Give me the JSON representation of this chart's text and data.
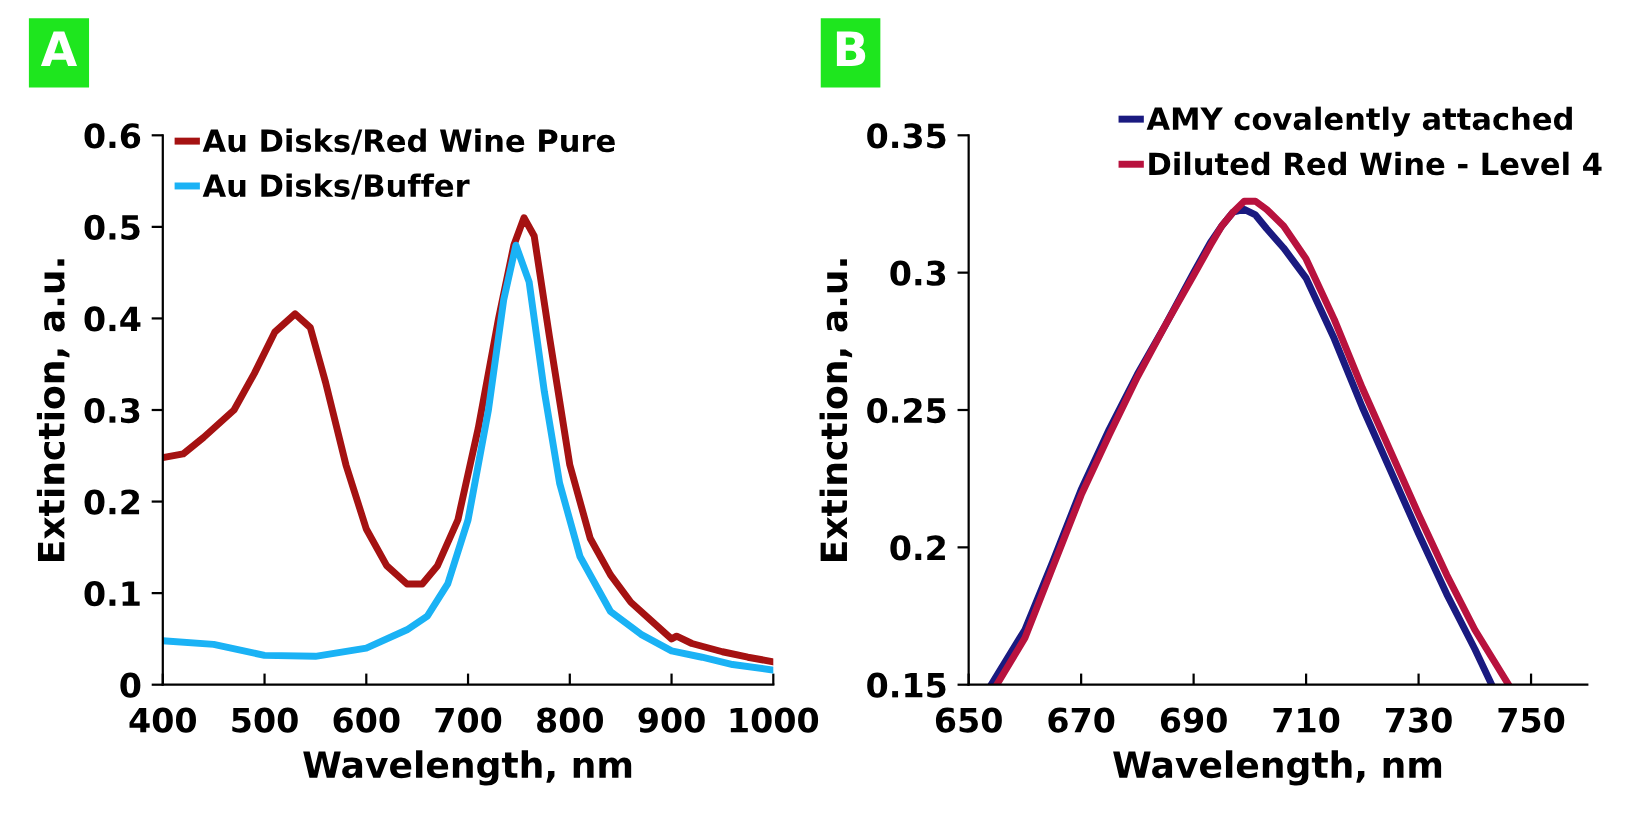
{
  "chart_data": [
    {
      "type": "line",
      "title": "A",
      "xlabel": "Wavelength, nm",
      "ylabel": "Extinction, a.u.",
      "xlim": [
        400,
        1000
      ],
      "ylim": [
        0,
        0.6
      ],
      "xticks": [
        400,
        500,
        600,
        700,
        800,
        900,
        1000
      ],
      "yticks": [
        0,
        0.1,
        0.2,
        0.3,
        0.4,
        0.5,
        0.6
      ],
      "legend": "top left",
      "grid": false,
      "series": [
        {
          "name": "Au Disks/Red Wine Pure",
          "color": "#a51212",
          "x": [
            400,
            420,
            440,
            470,
            490,
            510,
            530,
            545,
            560,
            580,
            600,
            620,
            640,
            655,
            670,
            690,
            710,
            730,
            745,
            755,
            765,
            780,
            800,
            820,
            840,
            860,
            880,
            895,
            900,
            905,
            920,
            950,
            975,
            1000
          ],
          "values": [
            0.248,
            0.252,
            0.27,
            0.3,
            0.34,
            0.385,
            0.405,
            0.39,
            0.33,
            0.24,
            0.17,
            0.13,
            0.11,
            0.11,
            0.13,
            0.18,
            0.28,
            0.4,
            0.48,
            0.51,
            0.49,
            0.38,
            0.24,
            0.16,
            0.12,
            0.09,
            0.07,
            0.055,
            0.05,
            0.053,
            0.045,
            0.036,
            0.03,
            0.025
          ]
        },
        {
          "name": "Au Disks/Buffer",
          "color": "#1ab2f5",
          "x": [
            400,
            450,
            500,
            550,
            600,
            640,
            660,
            680,
            700,
            720,
            735,
            747,
            760,
            775,
            790,
            810,
            840,
            870,
            900,
            930,
            960,
            1000
          ],
          "values": [
            0.048,
            0.044,
            0.032,
            0.031,
            0.04,
            0.06,
            0.075,
            0.11,
            0.18,
            0.3,
            0.42,
            0.48,
            0.44,
            0.32,
            0.22,
            0.14,
            0.08,
            0.055,
            0.037,
            0.03,
            0.022,
            0.016
          ]
        }
      ]
    },
    {
      "type": "line",
      "title": "B",
      "xlabel": "Wavelength, nm",
      "ylabel": "Extinction, a.u.",
      "xlim": [
        650,
        760
      ],
      "ylim": [
        0.15,
        0.35
      ],
      "xticks": [
        650,
        670,
        690,
        710,
        730,
        750
      ],
      "yticks": [
        0.15,
        0.2,
        0.25,
        0.3,
        0.35
      ],
      "legend": "top right",
      "grid": false,
      "series": [
        {
          "name": "AMY covalently attached",
          "color": "#1a1a80",
          "x": [
            654,
            660,
            665,
            670,
            675,
            680,
            685,
            690,
            693,
            695,
            697,
            699,
            701,
            703,
            706,
            710,
            715,
            720,
            725,
            730,
            735,
            740,
            743
          ],
          "values": [
            0.15,
            0.17,
            0.195,
            0.221,
            0.243,
            0.263,
            0.281,
            0.3,
            0.311,
            0.317,
            0.322,
            0.323,
            0.321,
            0.316,
            0.309,
            0.298,
            0.276,
            0.251,
            0.228,
            0.205,
            0.183,
            0.163,
            0.15
          ]
        },
        {
          "name": "Diluted Red Wine - Level 4",
          "color": "#b8123e",
          "x": [
            655,
            660,
            665,
            670,
            675,
            680,
            685,
            690,
            693,
            695,
            697,
            699,
            701,
            703,
            706,
            710,
            715,
            720,
            725,
            730,
            735,
            740,
            746
          ],
          "values": [
            0.15,
            0.167,
            0.193,
            0.219,
            0.241,
            0.262,
            0.281,
            0.299,
            0.31,
            0.317,
            0.322,
            0.326,
            0.326,
            0.323,
            0.317,
            0.305,
            0.283,
            0.258,
            0.235,
            0.212,
            0.19,
            0.17,
            0.15
          ]
        }
      ]
    }
  ]
}
